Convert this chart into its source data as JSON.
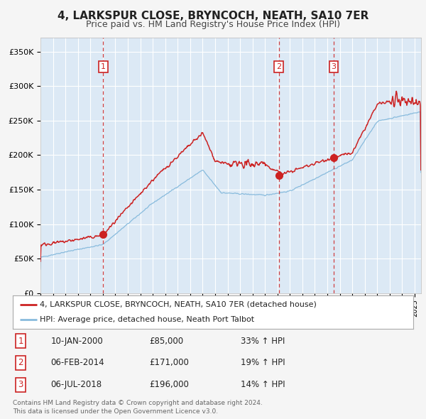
{
  "title": "4, LARKSPUR CLOSE, BRYNCOCH, NEATH, SA10 7ER",
  "subtitle": "Price paid vs. HM Land Registry's House Price Index (HPI)",
  "fig_bg_color": "#f5f5f5",
  "plot_bg_color": "#dce9f5",
  "grid_color": "#ffffff",
  "red_line_color": "#cc2222",
  "blue_line_color": "#88bbdd",
  "marker_color": "#cc2222",
  "vline_color": "#cc2222",
  "sale_year_floats": [
    2000.03,
    2014.1,
    2018.51
  ],
  "sale_prices": [
    85000,
    171000,
    196000
  ],
  "sale_labels": [
    "1",
    "2",
    "3"
  ],
  "legend_entries": [
    "4, LARKSPUR CLOSE, BRYNCOCH, NEATH, SA10 7ER (detached house)",
    "HPI: Average price, detached house, Neath Port Talbot"
  ],
  "table_rows": [
    [
      "1",
      "10-JAN-2000",
      "£85,000",
      "33% ↑ HPI"
    ],
    [
      "2",
      "06-FEB-2014",
      "£171,000",
      "19% ↑ HPI"
    ],
    [
      "3",
      "06-JUL-2018",
      "£196,000",
      "14% ↑ HPI"
    ]
  ],
  "footer": "Contains HM Land Registry data © Crown copyright and database right 2024.\nThis data is licensed under the Open Government Licence v3.0.",
  "ylim": [
    0,
    370000
  ],
  "yticks": [
    0,
    50000,
    100000,
    150000,
    200000,
    250000,
    300000,
    350000
  ],
  "ytick_labels": [
    "£0",
    "£50K",
    "£100K",
    "£150K",
    "£200K",
    "£250K",
    "£300K",
    "£350K"
  ],
  "xlim_start": 1995.0,
  "xlim_end": 2025.5
}
